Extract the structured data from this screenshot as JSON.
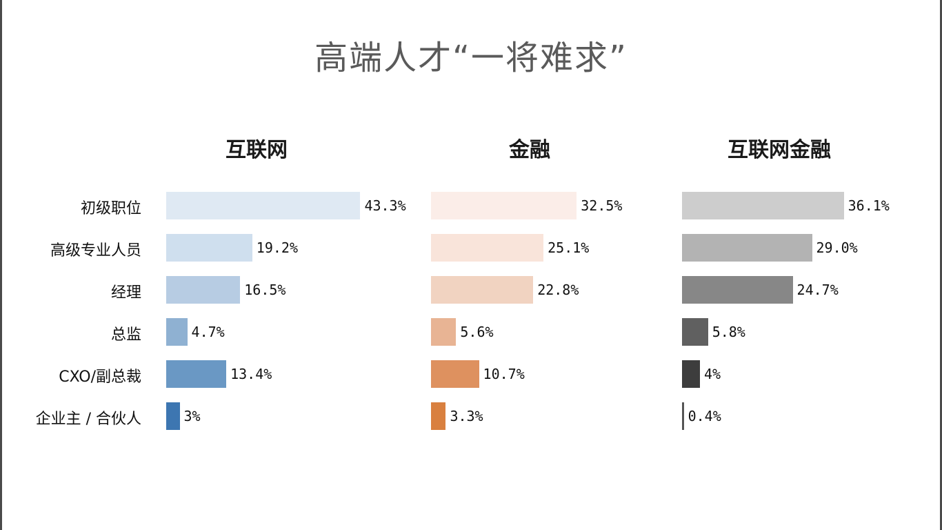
{
  "title": "高端人才“一将难求”",
  "chart_data": {
    "type": "bar",
    "orientation": "horizontal",
    "categories": [
      "初级职位",
      "高级专业人员",
      "经理",
      "总监",
      "CXO/副总裁",
      "企业主 / 合伙人"
    ],
    "panels": [
      {
        "title": "互联网",
        "values": [
          43.3,
          19.2,
          16.5,
          4.7,
          13.4,
          3
        ],
        "labels": [
          "43.3%",
          "19.2%",
          "16.5%",
          "4.7%",
          "13.4%",
          "3%"
        ],
        "colors": [
          "#dfe9f3",
          "#cfdfee",
          "#b7cce3",
          "#8fb1d2",
          "#6a98c4",
          "#3d76b1"
        ]
      },
      {
        "title": "金融",
        "values": [
          32.5,
          25.1,
          22.8,
          5.6,
          10.7,
          3.3
        ],
        "labels": [
          "32.5%",
          "25.1%",
          "22.8%",
          "5.6%",
          "10.7%",
          "3.3%"
        ],
        "colors": [
          "#fbede8",
          "#f9e4da",
          "#f1d3c1",
          "#e8b494",
          "#de915f",
          "#d9803f"
        ]
      },
      {
        "title": "互联网金融",
        "values": [
          36.1,
          29.0,
          24.7,
          5.8,
          4,
          0.4
        ],
        "labels": [
          "36.1%",
          "29.0%",
          "24.7%",
          "5.8%",
          "4%",
          "0.4%"
        ],
        "colors": [
          "#cdcdcd",
          "#b3b3b3",
          "#878787",
          "#606060",
          "#3d3d3d",
          "#555555"
        ]
      }
    ]
  }
}
